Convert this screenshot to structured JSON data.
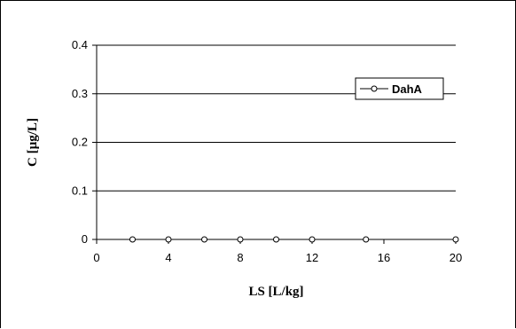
{
  "chart_data": {
    "type": "line",
    "title": "",
    "xlabel": "LS [L/kg]",
    "ylabel": "C [µg/L]",
    "xlim": [
      0,
      20
    ],
    "ylim": [
      0,
      0.4
    ],
    "x_ticks": [
      "0",
      "4",
      "8",
      "12",
      "16",
      "20"
    ],
    "y_ticks": [
      "0",
      "0.1",
      "0.2",
      "0.3",
      "0.4"
    ],
    "grid": "horizontal",
    "legend_position": "top-right",
    "series": [
      {
        "name": "DahA",
        "color": "#000000",
        "marker": "open-circle",
        "x": [
          2,
          4,
          6,
          8,
          10,
          12,
          15,
          20
        ],
        "y": [
          0,
          0,
          0,
          0,
          0,
          0,
          0,
          0
        ]
      }
    ]
  }
}
